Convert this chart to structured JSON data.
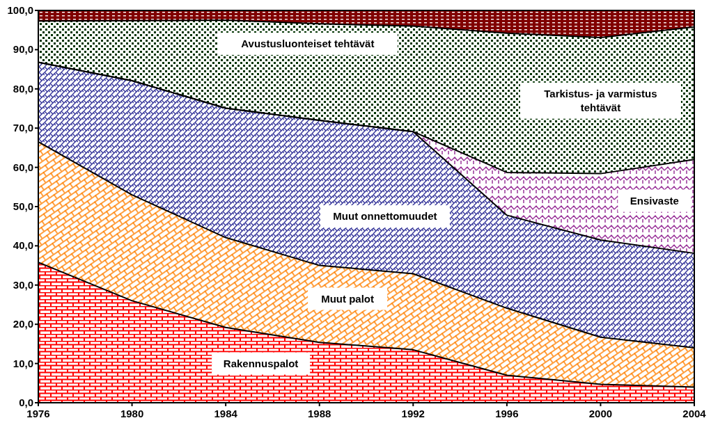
{
  "chart_data": {
    "type": "area",
    "stacked": true,
    "legend": false,
    "x": [
      1976,
      1980,
      1984,
      1988,
      1992,
      1996,
      2000,
      2004
    ],
    "xlim": [
      1976,
      2004
    ],
    "xticks": [
      1976,
      1980,
      1984,
      1988,
      1992,
      1996,
      2000,
      2004
    ],
    "ylim": [
      0,
      100
    ],
    "yticks": [
      {
        "value": 0,
        "label": "0,0"
      },
      {
        "value": 10,
        "label": "10,0"
      },
      {
        "value": 20,
        "label": "20,0"
      },
      {
        "value": 30,
        "label": "30,0"
      },
      {
        "value": 40,
        "label": "40,0"
      },
      {
        "value": 50,
        "label": "50,0"
      },
      {
        "value": 60,
        "label": "60,0"
      },
      {
        "value": 70,
        "label": "70,0"
      },
      {
        "value": 80,
        "label": "80,0"
      },
      {
        "value": 90,
        "label": "90,0"
      },
      {
        "value": 100,
        "label": "100,0"
      }
    ],
    "series": [
      {
        "name": "Rakennuspalot",
        "color": "#ff0000",
        "values": [
          35.8,
          26.0,
          19.2,
          15.4,
          13.5,
          7.0,
          4.7,
          4.0
        ]
      },
      {
        "name": "Muut palot",
        "color": "#ff8000",
        "values": [
          30.7,
          27.0,
          22.9,
          19.6,
          19.4,
          17.1,
          12.0,
          10.0
        ]
      },
      {
        "name": "Muut onnettomuudet",
        "color": "#333399",
        "values": [
          20.3,
          29.1,
          33.0,
          37.0,
          36.2,
          23.7,
          24.8,
          24.1
        ]
      },
      {
        "name": "Ensivaste",
        "color": "#993399",
        "values": [
          0,
          0,
          0,
          0,
          0,
          10.9,
          16.9,
          23.9
        ]
      },
      {
        "name": "Tarkistus- ja varmistus tehtävät",
        "color": "#003300",
        "values": [
          10.5,
          15.3,
          22.4,
          24.6,
          26.9,
          35.5,
          34.7,
          33.8
        ]
      },
      {
        "name": "Avustusluonteiset tehtävät",
        "color": "#800000",
        "values": [
          2.7,
          2.6,
          2.5,
          3.4,
          4.0,
          5.8,
          6.9,
          4.2
        ]
      }
    ]
  }
}
